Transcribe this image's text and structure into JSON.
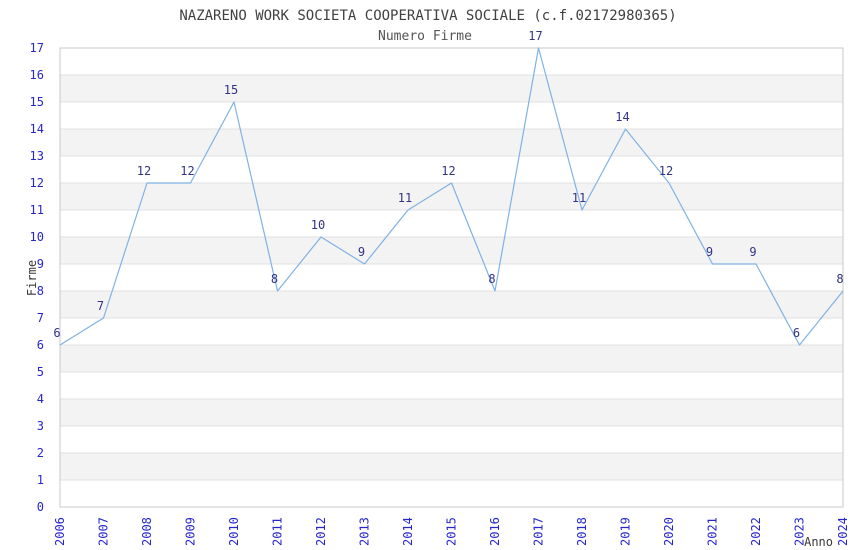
{
  "chart_data": {
    "type": "line",
    "title": "NAZARENO WORK SOCIETA COOPERATIVA SOCIALE (c.f.02172980365)",
    "subtitle": "Numero Firme",
    "xlabel": "Anno",
    "ylabel": "Firme",
    "x": [
      "2006",
      "2007",
      "2008",
      "2009",
      "2010",
      "2011",
      "2012",
      "2013",
      "2014",
      "2015",
      "2016",
      "2017",
      "2018",
      "2019",
      "2020",
      "2021",
      "2022",
      "2023",
      "2024"
    ],
    "values": [
      6,
      7,
      12,
      12,
      15,
      8,
      10,
      9,
      11,
      12,
      8,
      17,
      11,
      14,
      12,
      9,
      9,
      6,
      8
    ],
    "ylim": [
      0,
      17
    ],
    "ytick_step": 1,
    "legend": "none",
    "grid": "horizontal-bands",
    "point_labels": true
  },
  "style": {
    "line_color": "#7fb2e5",
    "value_label_color": "#333388",
    "tick_label_color": "#2626cc",
    "title_color": "#404040",
    "subtitle_color": "#555555",
    "axis_title_color": "#383838",
    "band_fill": "#f3f3f3",
    "grid_color": "#e0e0e0",
    "border_color": "#c8c8c8",
    "background": "#ffffff"
  }
}
